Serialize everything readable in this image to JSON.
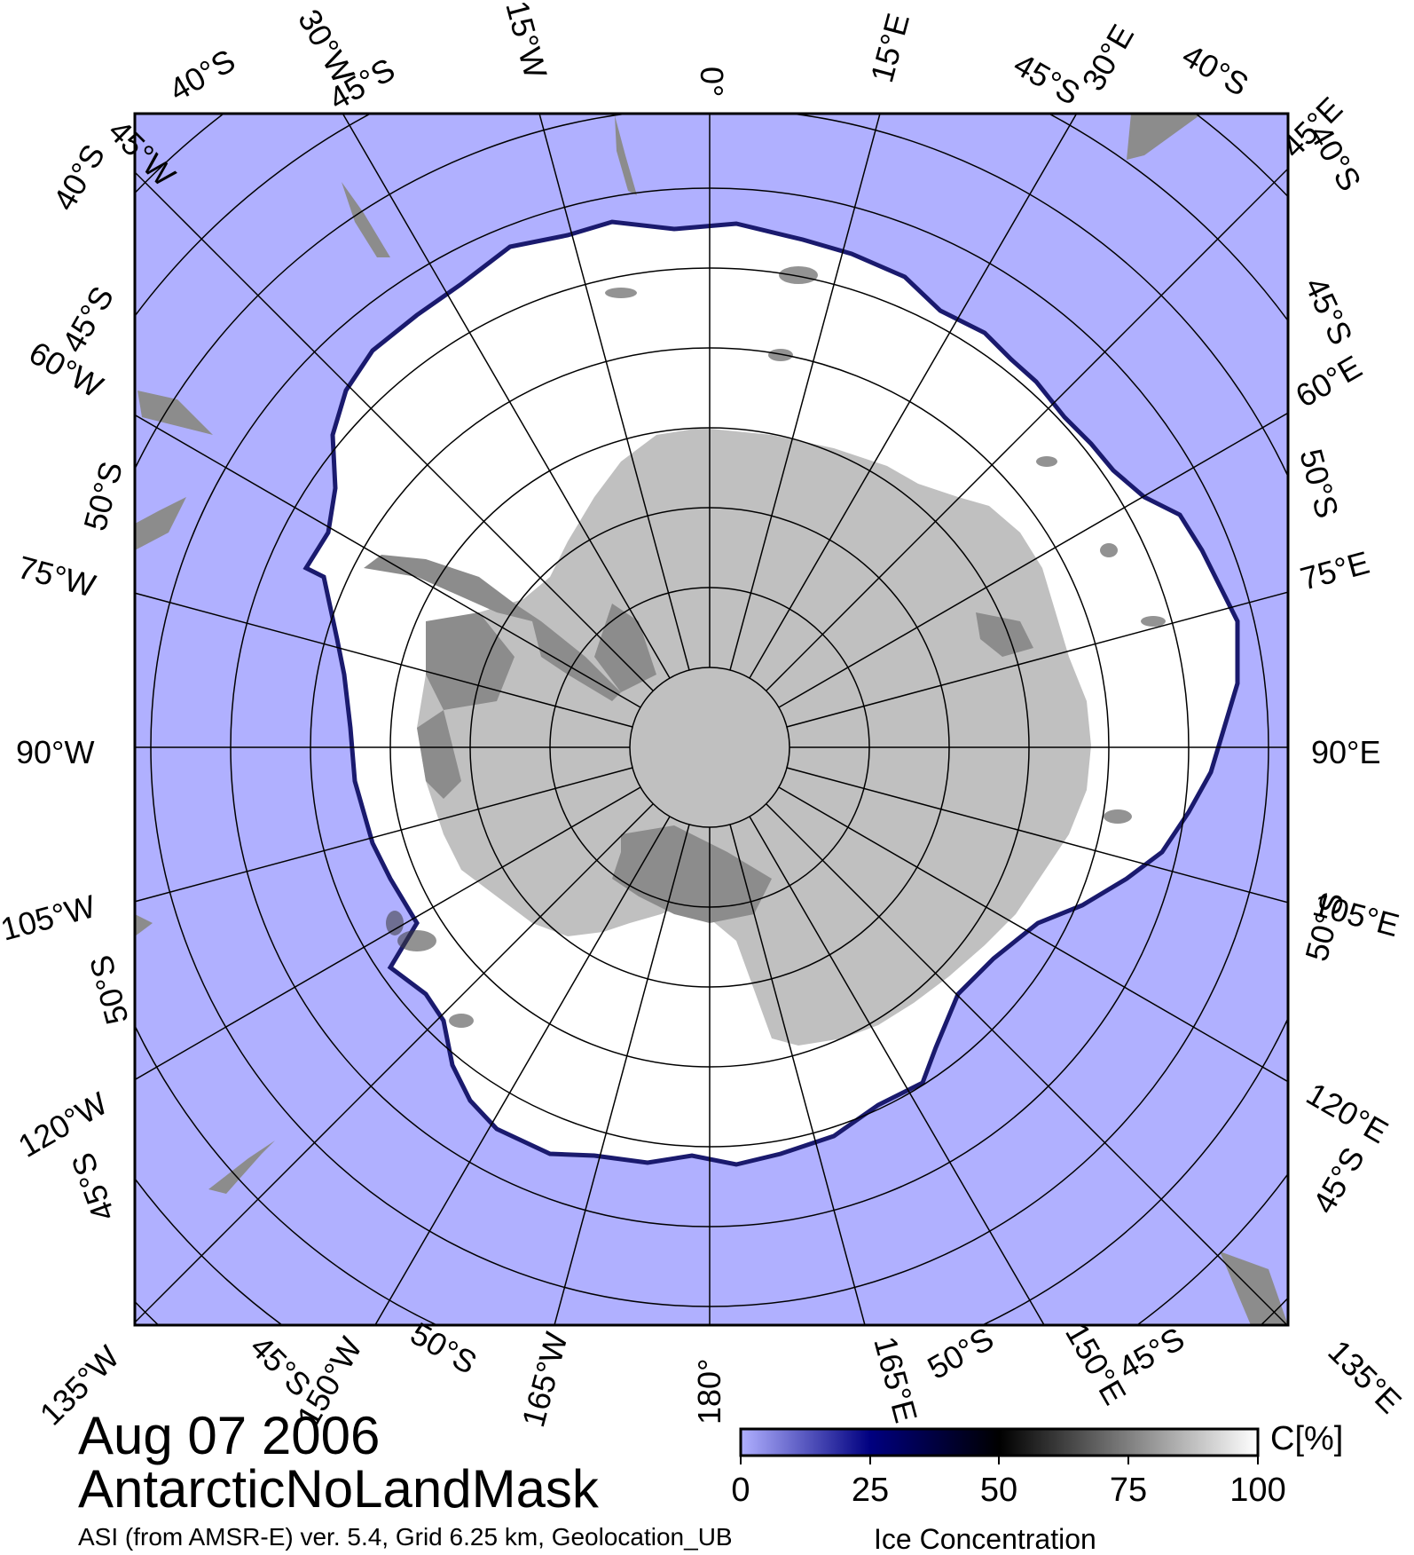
{
  "title": {
    "date": "Aug 07 2006",
    "region": "AntarcticNoLandMask",
    "subtitle": "ASI (from AMSR-E) ver. 5.4,  Grid 6.25 km, Geolocation_UB"
  },
  "colorbar": {
    "title": "Ice Concentration",
    "unit": "C[%]",
    "ticks": [
      "0",
      "25",
      "50",
      "75",
      "100"
    ],
    "stops": [
      "#b0b0ff",
      "#000080",
      "#000000",
      "#ffffff"
    ]
  },
  "meridian_labels": {
    "top": [
      "45°W",
      "30°W",
      "15°W",
      "0°",
      "15°E",
      "30°E",
      "45°E"
    ],
    "left": [
      "60°W",
      "75°W",
      "90°W",
      "105°W",
      "120°W"
    ],
    "right": [
      "60°E",
      "75°E",
      "90°E",
      "105°E",
      "120°E"
    ],
    "bottom": [
      "135°W",
      "150°W",
      "165°W",
      "180°",
      "165°E",
      "150°E",
      "135°E"
    ]
  },
  "latitude_labels": {
    "top": [
      "40°S",
      "45°S",
      "45°S",
      "40°S"
    ],
    "left": [
      "40°S",
      "45°S",
      "50°S",
      "50°S",
      "45°S"
    ],
    "right": [
      "40°S",
      "45°S",
      "50°S",
      "50°S",
      "45°S"
    ],
    "bottom": [
      "45°S",
      "50°S",
      "50°S",
      "45°S"
    ]
  },
  "colors": {
    "ocean": "#b0b0ff",
    "ice": "#ffffff",
    "land": "#c0c0c0",
    "ice_shelf": "#8c8c8c",
    "coast_edge": "#00008c",
    "grid": "#000000"
  }
}
